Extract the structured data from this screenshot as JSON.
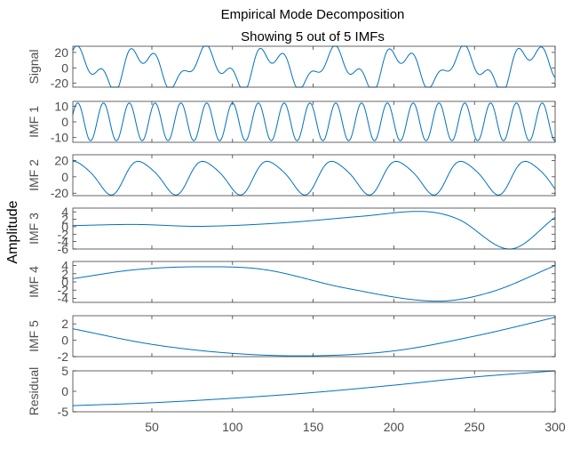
{
  "chart_data": {
    "type": "line",
    "title": "Empirical Mode Decomposition",
    "subtitle": "Showing 5 out of 5 IMFs",
    "shared_ylabel": "Amplitude",
    "line_color": "#0072BD",
    "box_color": "#262626",
    "xlim": [
      1,
      300
    ],
    "xticks": [
      50,
      100,
      150,
      200,
      250,
      300
    ],
    "grid": false,
    "panels": [
      {
        "ylabel": "Signal",
        "ylim": [
          -25,
          28
        ],
        "yticks": [
          -20,
          0,
          20
        ],
        "signal_components": "sum of IMF 1 to 5 and residual"
      },
      {
        "ylabel": "IMF 1",
        "ylim": [
          -13,
          13
        ],
        "yticks": [
          -10,
          0,
          10
        ],
        "form": "sine",
        "amplitude": 12,
        "period": 16,
        "phase": 0
      },
      {
        "ylabel": "IMF 2",
        "ylim": [
          -23,
          27
        ],
        "yticks": [
          -20,
          0,
          20
        ],
        "form": "sine-with-harmonic",
        "amplitude": 22,
        "period": 40,
        "phase": 1.0
      },
      {
        "ylabel": "IMF 3",
        "ylim": [
          -6,
          5
        ],
        "yticks": [
          -6,
          -4,
          -2,
          0,
          2,
          4
        ],
        "points": [
          [
            1,
            0.3
          ],
          [
            40,
            0.6
          ],
          [
            80,
            0.1
          ],
          [
            130,
            1.0
          ],
          [
            180,
            2.8
          ],
          [
            218,
            4.1
          ],
          [
            240,
            2.0
          ],
          [
            272,
            -6.0
          ],
          [
            300,
            2.5
          ]
        ]
      },
      {
        "ylabel": "IMF 4",
        "ylim": [
          -5,
          5
        ],
        "yticks": [
          -4,
          -2,
          0,
          2,
          4
        ],
        "points": [
          [
            1,
            0.8
          ],
          [
            40,
            3.0
          ],
          [
            80,
            3.7
          ],
          [
            120,
            3.0
          ],
          [
            170,
            -1.5
          ],
          [
            225,
            -4.7
          ],
          [
            260,
            -2.5
          ],
          [
            300,
            4.0
          ]
        ]
      },
      {
        "ylabel": "IMF 5",
        "ylim": [
          -2,
          3
        ],
        "yticks": [
          -2,
          0,
          2
        ],
        "points": [
          [
            1,
            1.4
          ],
          [
            50,
            -0.5
          ],
          [
            100,
            -1.6
          ],
          [
            150,
            -1.9
          ],
          [
            200,
            -1.3
          ],
          [
            250,
            0.5
          ],
          [
            300,
            2.8
          ]
        ]
      },
      {
        "ylabel": "Residual",
        "ylim": [
          -5,
          5
        ],
        "yticks": [
          -5,
          0,
          5
        ],
        "points": [
          [
            1,
            -3.5
          ],
          [
            50,
            -2.8
          ],
          [
            100,
            -1.7
          ],
          [
            150,
            -0.3
          ],
          [
            200,
            1.5
          ],
          [
            250,
            3.5
          ],
          [
            300,
            5.0
          ]
        ]
      }
    ]
  }
}
